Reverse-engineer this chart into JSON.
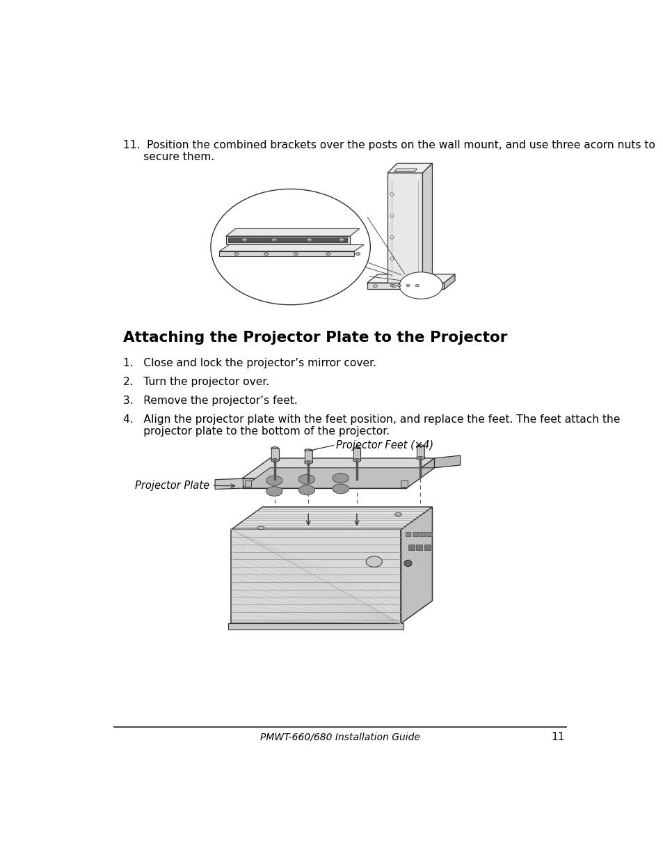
{
  "background_color": "#ffffff",
  "step11_line1": "11.  Position the combined brackets over the posts on the wall mount, and use three acorn nuts to",
  "step11_line2": "      secure them.",
  "section_title": "Attaching the Projector Plate to the Projector",
  "step1": "1.   Close and lock the projector’s mirror cover.",
  "step2": "2.   Turn the projector over.",
  "step3": "3.   Remove the projector’s feet.",
  "step4_line1": "4.   Align the projector plate with the feet position, and replace the feet. The feet attach the",
  "step4_line2": "      projector plate to the bottom of the projector.",
  "footer_text": "PMWT-660/680 Installation Guide",
  "page_number": "11",
  "label_projector_feet": "Projector Feet (×4)",
  "label_projector_plate": "Projector Plate"
}
